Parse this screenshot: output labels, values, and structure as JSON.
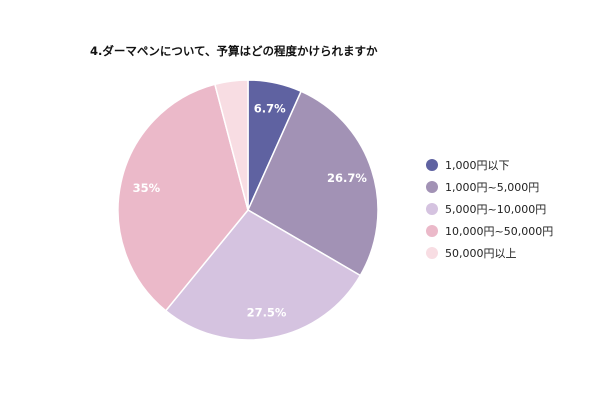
{
  "chart_data": {
    "type": "pie",
    "title": "4.ダーマペンについて、予算はどの程度かけられますか",
    "categories": [
      "1,000円以下",
      "1,000円~5,000円",
      "5,000円~10,000円",
      "10,000円~50,000円",
      "50,000円以上"
    ],
    "values": [
      6.7,
      26.7,
      27.5,
      35,
      4.1
    ],
    "data_labels": [
      "6.7%",
      "26.7%",
      "27.5%",
      "35%",
      ""
    ],
    "colors": [
      "#5f62a1",
      "#a292b5",
      "#d5c3e0",
      "#ebb9c9",
      "#f8dde3"
    ],
    "label_colors": [
      "#ffffff",
      "#ffffff",
      "#ffffff",
      "#ffffff",
      "#ffffff"
    ],
    "start_angle": "12 o'clock, clockwise",
    "legend_position": "right"
  }
}
